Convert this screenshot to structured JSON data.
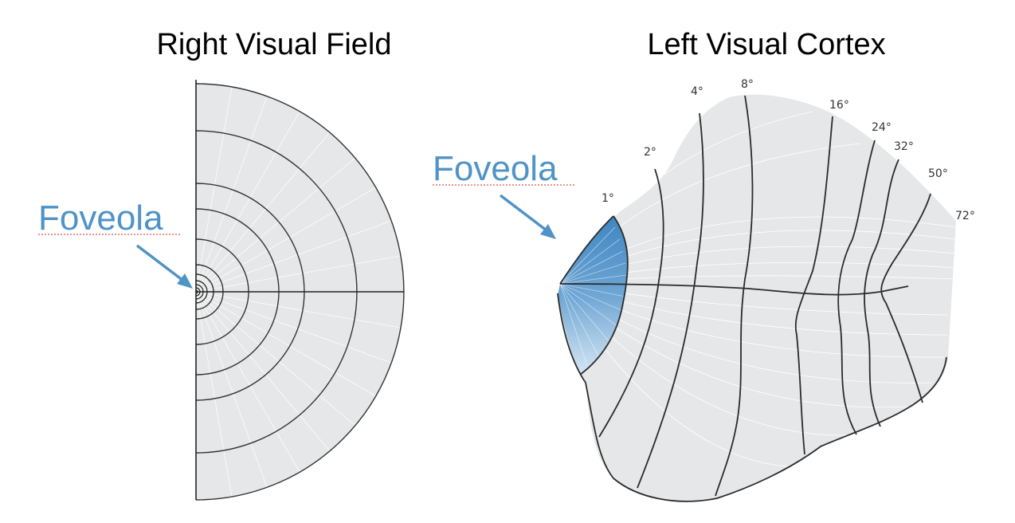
{
  "titles": {
    "left": "Right Visual Field",
    "right": "Left Visual Cortex"
  },
  "annotations": {
    "field_label": "Foveola",
    "cortex_label": "Foveola"
  },
  "eccentricity_labels": [
    "1°",
    "2°",
    "4°",
    "8°",
    "16°",
    "24°",
    "32°",
    "50°",
    "72°"
  ],
  "colors": {
    "region_fill": "#e6e7e8",
    "foveola": "#4f93c7",
    "outline": "#2b2b2b"
  }
}
